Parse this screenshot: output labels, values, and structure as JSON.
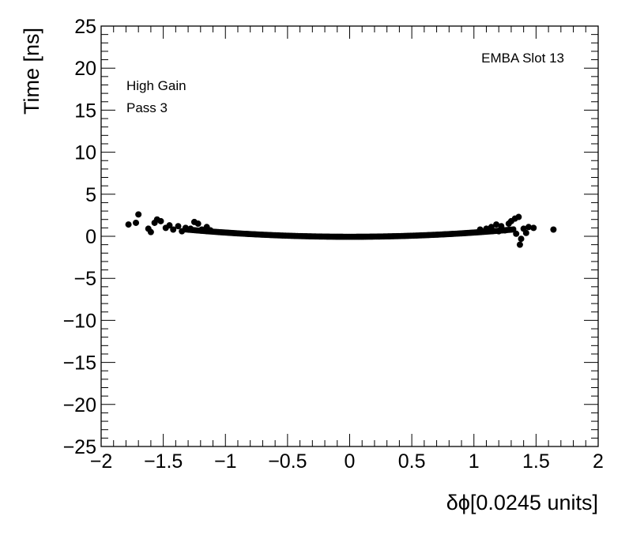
{
  "chart_data": {
    "type": "scatter",
    "xlabel": "δϕ[0.0245 units]",
    "ylabel": "Time [ns]",
    "xlim": [
      -2,
      2
    ],
    "ylim": [
      -25,
      25
    ],
    "x_ticks": [
      -2,
      -1.5,
      -1,
      -0.5,
      0,
      0.5,
      1,
      1.5,
      2
    ],
    "x_tick_labels": [
      "−2",
      "−1.5",
      "−1",
      "−0.5",
      "0",
      "0.5",
      "1",
      "1.5",
      "2"
    ],
    "y_ticks": [
      -25,
      -20,
      -15,
      -10,
      -5,
      0,
      5,
      10,
      15,
      20,
      25
    ],
    "y_tick_labels": [
      "−25",
      "−20",
      "−15",
      "−10",
      "−5",
      "0",
      "5",
      "10",
      "15",
      "20",
      "25"
    ],
    "grid": false,
    "marker_color": "#000000",
    "annotations": {
      "slot": "EMBA Slot 13",
      "gain": "High Gain",
      "pass": "Pass 3"
    },
    "outliers": [
      [
        -1.78,
        1.4
      ],
      [
        -1.72,
        1.6
      ],
      [
        -1.7,
        2.6
      ],
      [
        -1.62,
        0.9
      ],
      [
        -1.6,
        0.5
      ],
      [
        -1.57,
        1.6
      ],
      [
        -1.55,
        2.0
      ],
      [
        -1.52,
        1.8
      ],
      [
        -1.48,
        1.0
      ],
      [
        -1.45,
        1.3
      ],
      [
        -1.42,
        0.8
      ],
      [
        -1.38,
        1.2
      ],
      [
        -1.35,
        0.6
      ],
      [
        -1.32,
        1.0
      ],
      [
        -1.28,
        0.9
      ],
      [
        -1.25,
        1.7
      ],
      [
        -1.22,
        1.5
      ],
      [
        -1.19,
        0.8
      ],
      [
        -1.15,
        1.1
      ],
      [
        -1.12,
        0.7
      ],
      [
        1.05,
        0.8
      ],
      [
        1.1,
        0.9
      ],
      [
        1.14,
        1.1
      ],
      [
        1.18,
        1.4
      ],
      [
        1.2,
        0.6
      ],
      [
        1.22,
        1.2
      ],
      [
        1.25,
        0.7
      ],
      [
        1.28,
        1.5
      ],
      [
        1.3,
        1.8
      ],
      [
        1.33,
        2.1
      ],
      [
        1.36,
        2.3
      ],
      [
        1.34,
        0.3
      ],
      [
        1.38,
        -0.3
      ],
      [
        1.37,
        -1.0
      ],
      [
        1.4,
        0.9
      ],
      [
        1.42,
        0.4
      ],
      [
        1.44,
        1.1
      ],
      [
        1.48,
        1.0
      ],
      [
        1.64,
        0.8
      ]
    ],
    "band": {
      "x_range": [
        -1.32,
        1.32
      ],
      "step": 0.012,
      "curvature": 0.5,
      "description": "dense band following t ≈ 0.5·x²"
    }
  }
}
